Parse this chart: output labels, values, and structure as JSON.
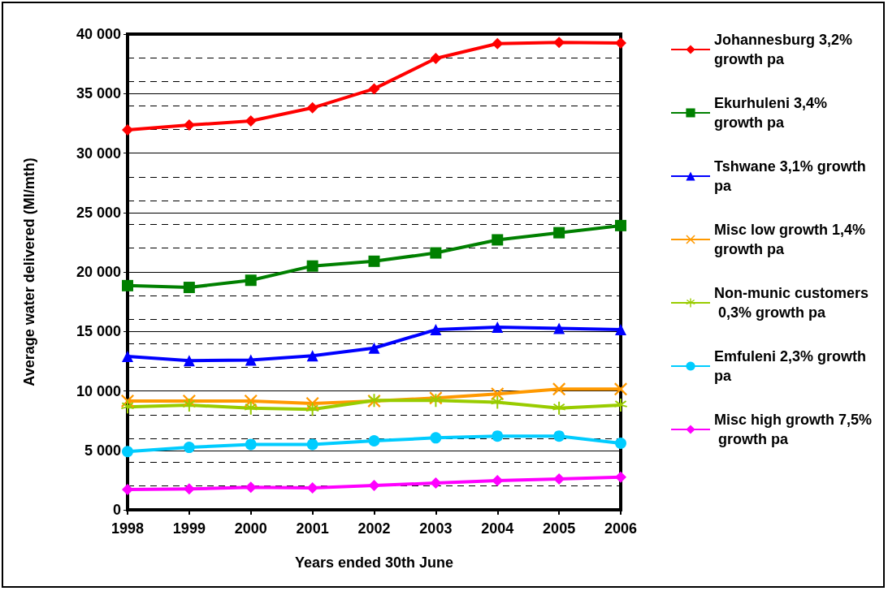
{
  "chart_data": {
    "type": "line",
    "xlabel": "Years ended 30th June",
    "ylabel": "Average water delivered (Ml/mth)",
    "categories": [
      "1998",
      "1999",
      "2000",
      "2001",
      "2002",
      "2003",
      "2004",
      "2005",
      "2006"
    ],
    "ylim": [
      0,
      40000
    ],
    "yticks": [
      {
        "value": 0,
        "label": "0"
      },
      {
        "value": 5000,
        "label": "5 000"
      },
      {
        "value": 10000,
        "label": "10 000"
      },
      {
        "value": 15000,
        "label": "15 000"
      },
      {
        "value": 20000,
        "label": "20 000"
      },
      {
        "value": 25000,
        "label": "25 000"
      },
      {
        "value": 30000,
        "label": "30 000"
      },
      {
        "value": 35000,
        "label": "35 000"
      },
      {
        "value": 40000,
        "label": "40 000"
      }
    ],
    "grid": "y",
    "legend": "right",
    "line_style": "solid",
    "series": [
      {
        "name": "Johannesburg 3,2% growth pa",
        "color": "#ff0000",
        "marker": "diamond",
        "values": [
          31950,
          32350,
          32700,
          33800,
          35400,
          37950,
          39200,
          39300,
          39250
        ]
      },
      {
        "name": "Ekurhuleni 3,4% growth pa",
        "color": "#008000",
        "marker": "square",
        "values": [
          18850,
          18700,
          19300,
          20500,
          20900,
          21600,
          22700,
          23300,
          23900
        ]
      },
      {
        "name": "Tshwane 3,1% growth pa",
        "color": "#0000ff",
        "marker": "triangle",
        "values": [
          12900,
          12550,
          12600,
          12950,
          13600,
          15150,
          15350,
          15250,
          15150
        ]
      },
      {
        "name": "Misc low growth 1,4% growth pa",
        "color": "#ff9900",
        "marker": "cross",
        "values": [
          9150,
          9150,
          9150,
          8950,
          9150,
          9400,
          9750,
          10150,
          10150
        ]
      },
      {
        "name": "Non-munic customers 0,3% growth pa",
        "color": "#99cc00",
        "marker": "star",
        "values": [
          8650,
          8800,
          8550,
          8450,
          9200,
          9200,
          9050,
          8550,
          8800
        ]
      },
      {
        "name": "Emfuleni 2,3% growth pa",
        "color": "#00ccff",
        "marker": "circle",
        "values": [
          4900,
          5250,
          5500,
          5500,
          5800,
          6050,
          6200,
          6200,
          5600
        ]
      },
      {
        "name": "Misc high growth 7,5% growth pa",
        "color": "#ff00ff",
        "marker": "diamond",
        "values": [
          1700,
          1750,
          1900,
          1850,
          2050,
          2250,
          2450,
          2600,
          2750
        ]
      }
    ]
  }
}
